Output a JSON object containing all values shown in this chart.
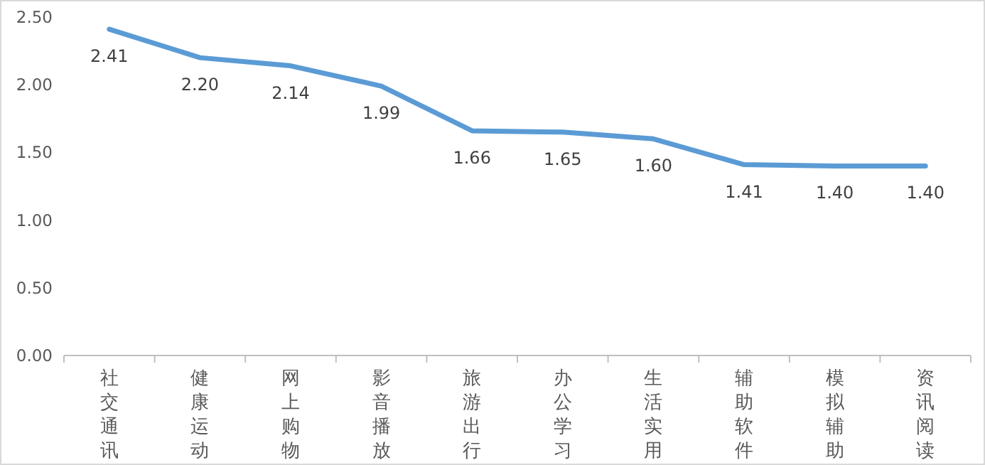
{
  "chart_data": {
    "type": "line",
    "categories": [
      "社交通讯",
      "健康运动",
      "网上购物",
      "影音播放",
      "旅游出行",
      "办公学习",
      "生活实用",
      "辅助软件",
      "模拟辅助",
      "资讯阅读"
    ],
    "values": [
      2.41,
      2.2,
      2.14,
      1.99,
      1.66,
      1.65,
      1.6,
      1.41,
      1.4,
      1.4
    ],
    "color": "#5b9bd5",
    "ylim": [
      0,
      2.5
    ],
    "yticks": [
      {
        "value": 0,
        "label": "0.00"
      },
      {
        "value": 0.5,
        "label": "0.50"
      },
      {
        "value": 1,
        "label": "1.00"
      },
      {
        "value": 1.5,
        "label": "1.50"
      },
      {
        "value": 2,
        "label": "2.00"
      },
      {
        "value": 2.5,
        "label": "2.50"
      }
    ],
    "value_labels": [
      "2.41",
      "2.20",
      "2.14",
      "1.99",
      "1.66",
      "1.65",
      "1.60",
      "1.41",
      "1.40",
      "1.40"
    ],
    "grid": false,
    "marker": "none",
    "line_style": "solid"
  }
}
